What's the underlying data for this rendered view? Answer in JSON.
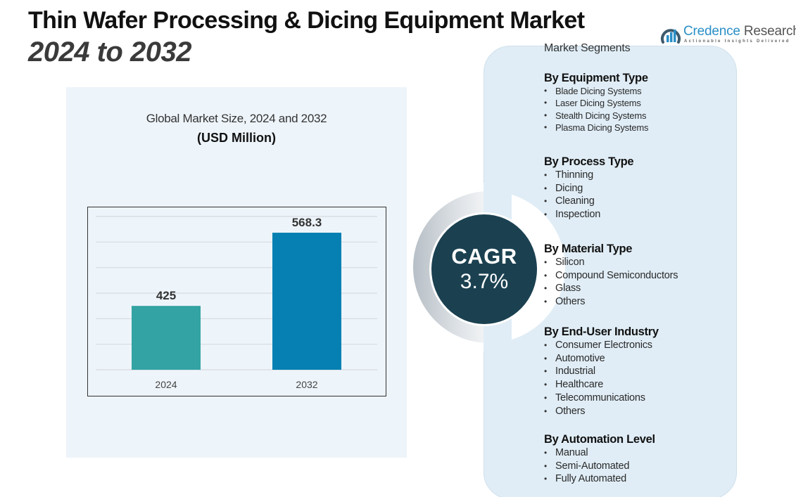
{
  "header": {
    "title": "Thin Wafer Processing & Dicing Equipment Market",
    "subtitle": "2024 to 2032"
  },
  "logo": {
    "name_part1": "Credence",
    "name_part2": "Research",
    "tagline": "Actionable Insights Delivered",
    "icon": "bar-chart-circle-icon",
    "brand_color": "#2a8fc7"
  },
  "chart_panel": {
    "title": "Global Market Size, 2024 and 2032",
    "unit": "(USD Million)"
  },
  "chart_data": {
    "type": "bar",
    "title": "Global Market Size, 2024 and 2032",
    "subtitle": "(USD Million)",
    "categories": [
      "2024",
      "2032"
    ],
    "values": [
      425,
      568.3
    ],
    "data_labels": [
      "425",
      "568.3"
    ],
    "colors": [
      "#33a3a3",
      "#0680b2"
    ],
    "xlabel": "",
    "ylabel": "",
    "ylim": [
      300,
      600
    ],
    "gridline_step": 50,
    "grid": true,
    "y_tick_labels_visible": false,
    "legend": "none"
  },
  "cagr": {
    "label": "CAGR",
    "value": "3.7%"
  },
  "segments": {
    "heading": "Market Segments",
    "groups": [
      {
        "title": "By Equipment Type",
        "items": [
          "Blade Dicing Systems",
          "Laser Dicing Systems",
          "Stealth Dicing Systems",
          "Plasma Dicing Systems"
        ]
      },
      {
        "title": "By Process Type",
        "items": [
          "Thinning",
          "Dicing",
          "Cleaning",
          "Inspection"
        ]
      },
      {
        "title": "By Material Type",
        "items": [
          "Silicon",
          "Compound Semiconductors",
          "Glass",
          "Others"
        ]
      },
      {
        "title": "By End-User Industry",
        "items": [
          "Consumer Electronics",
          "Automotive",
          "Industrial",
          "Healthcare",
          "Telecommunications",
          "Others"
        ]
      },
      {
        "title": "By Automation Level",
        "items": [
          "Manual",
          "Semi-Automated",
          "Fully Automated"
        ]
      }
    ]
  }
}
